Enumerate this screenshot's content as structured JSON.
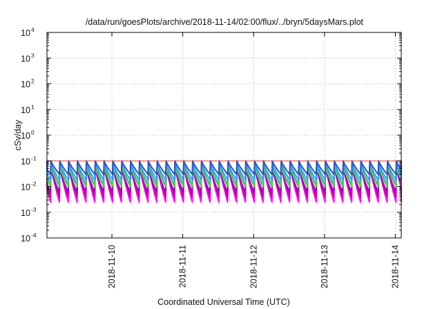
{
  "chart_data": {
    "type": "line",
    "title": "/data/run/goesPlots/archive/2018-11-14/02:00/flux/../bryn/5daysMars.plot",
    "xlabel": "Coordinated Universal Time (UTC)",
    "ylabel": "cSv/day",
    "yscale": "log",
    "ylim": [
      0.0001,
      10000
    ],
    "yticks": [
      {
        "base": "10",
        "exp": "4"
      },
      {
        "base": "10",
        "exp": "3"
      },
      {
        "base": "10",
        "exp": "2"
      },
      {
        "base": "10",
        "exp": "1"
      },
      {
        "base": "10",
        "exp": "0"
      },
      {
        "base": "10",
        "exp": "-1"
      },
      {
        "base": "10",
        "exp": "-2"
      },
      {
        "base": "10",
        "exp": "-3"
      },
      {
        "base": "10",
        "exp": "-4"
      }
    ],
    "xlim": [
      "2018-11-09T02:00",
      "2018-11-14T02:00"
    ],
    "xticks": [
      "2018-11-10",
      "2018-11-11",
      "2018-11-12",
      "2018-11-13",
      "2018-11-14"
    ],
    "grid": true,
    "reference_level": 0.1,
    "cycle_hours": 3,
    "series": [
      {
        "color": "#ff00ff",
        "peak": 0.075,
        "trough": 0.0025
      },
      {
        "color": "#cc0099",
        "peak": 0.06,
        "trough": 0.004
      },
      {
        "color": "#9900cc",
        "peak": 0.05,
        "trough": 0.006
      },
      {
        "color": "#00bbbb",
        "peak": 0.07,
        "trough": 0.012
      },
      {
        "color": "#66cc33",
        "peak": 0.06,
        "trough": 0.01
      },
      {
        "color": "#3399ff",
        "peak": 0.085,
        "trough": 0.018
      },
      {
        "color": "#2255cc",
        "peak": 0.1,
        "trough": 0.03
      }
    ],
    "colors": {
      "reference_line": "#ff3333",
      "grid": "#aaaaaa",
      "axis": "#000000"
    }
  }
}
